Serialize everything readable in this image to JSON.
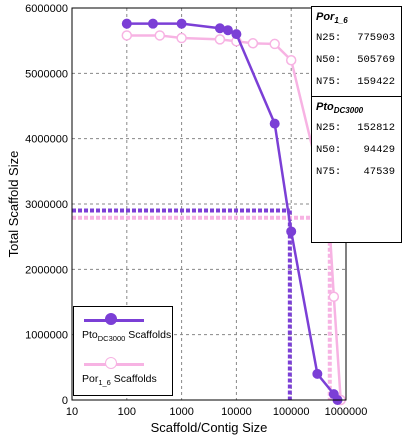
{
  "chart_data": {
    "type": "line",
    "xscale": "log",
    "xlabel": "Scaffold/Contig Size",
    "ylabel": "Total Scaffold Size",
    "xlim": [
      10,
      1000000
    ],
    "ylim": [
      0,
      6000000
    ],
    "x_ticks": [
      "10",
      "100",
      "1000",
      "10000",
      "100000",
      "1000000"
    ],
    "y_ticks": [
      "0",
      "1000000",
      "2000000",
      "3000000",
      "4000000",
      "5000000",
      "6000000"
    ],
    "grid": true,
    "series": [
      {
        "label_main": "Pto",
        "label_sub": "DC3000",
        "label_rest": " Scaffolds",
        "color": "#7b3fd6",
        "marker": "filled",
        "points": [
          [
            100,
            5760000
          ],
          [
            300,
            5760000
          ],
          [
            1000,
            5760000
          ],
          [
            5000,
            5690000
          ],
          [
            7000,
            5660000
          ],
          [
            10000,
            5600000
          ],
          [
            50000,
            4230000
          ],
          [
            100000,
            2580000
          ],
          [
            300000,
            400000
          ],
          [
            600000,
            90000
          ],
          [
            700000,
            0
          ]
        ],
        "n50_x": 94429,
        "n50_y": 2900000
      },
      {
        "label_main": "Por",
        "label_sub": "1_6",
        "label_rest": " Scaffolds",
        "color": "#f7b3e3",
        "marker": "open",
        "points": [
          [
            100,
            5580000
          ],
          [
            400,
            5580000
          ],
          [
            1000,
            5540000
          ],
          [
            5000,
            5520000
          ],
          [
            10000,
            5490000
          ],
          [
            20000,
            5460000
          ],
          [
            50000,
            5450000
          ],
          [
            100000,
            5200000
          ],
          [
            300000,
            3550000
          ],
          [
            450000,
            3300000
          ],
          [
            600000,
            1580000
          ],
          [
            800000,
            0
          ]
        ],
        "n50_x": 505769,
        "n50_y": 2790000
      }
    ]
  },
  "stats": [
    {
      "title_main": "Por",
      "title_sub": "1_6",
      "rows": [
        {
          "label": "N25:",
          "value": "775903"
        },
        {
          "label": "N50:",
          "value": "505769"
        },
        {
          "label": "N75:",
          "value": "159422"
        }
      ]
    },
    {
      "title_main": "Pto",
      "title_sub": "DC3000",
      "rows": [
        {
          "label": "N25:",
          "value": "152812"
        },
        {
          "label": "N50:",
          "value": "94429"
        },
        {
          "label": "N75:",
          "value": "47539"
        }
      ]
    }
  ]
}
